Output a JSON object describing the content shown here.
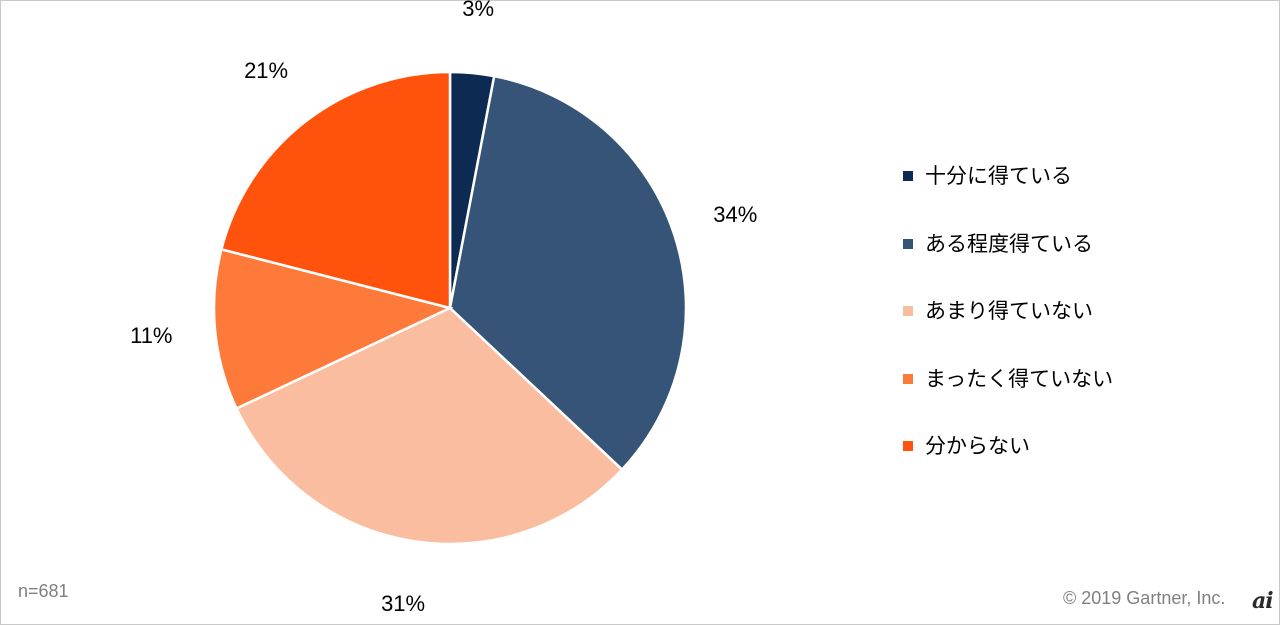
{
  "chart_data": {
    "type": "pie",
    "categories": [
      "十分に得ている",
      "ある程度得ている",
      "あまり得ていない",
      "まったく得ていない",
      "分からない"
    ],
    "values": [
      3,
      34,
      31,
      11,
      21
    ],
    "data_labels": [
      "3%",
      "34%",
      "31%",
      "11%",
      "21%"
    ],
    "colors": [
      "#0d2a52",
      "#355477",
      "#fbbd9f",
      "#fd7a3b",
      "#ff530d"
    ],
    "start_angle": "12 o'clock",
    "direction": "clockwise",
    "legend_position": "right"
  },
  "footnote": "n=681",
  "copyright": "© 2019 Gartner, Inc.",
  "watermark": "ai"
}
